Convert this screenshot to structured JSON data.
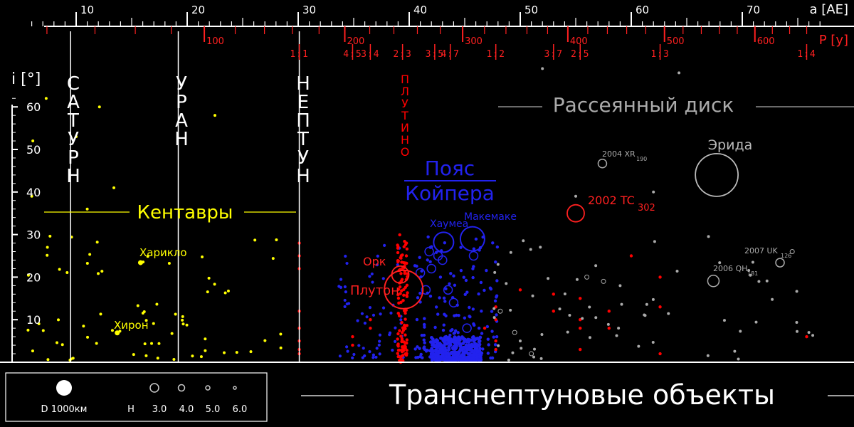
{
  "chart_data": {
    "type": "scatter",
    "title": "Транснептуновые объекты",
    "xlabel": "a [АЕ]",
    "ylabel": "i [°]",
    "xlim": [
      5,
      77
    ],
    "ylim": [
      0,
      65
    ],
    "x_ticks": [
      10,
      20,
      30,
      40,
      50,
      60,
      70
    ],
    "y_ticks": [
      10,
      20,
      30,
      40,
      50,
      60
    ],
    "period_axis": {
      "label": "P [y]",
      "ticks": [
        100,
        200,
        300,
        400,
        500,
        600
      ]
    },
    "resonances": [
      {
        "a": 30.1,
        "label": "1:1"
      },
      {
        "a": 34.9,
        "label": "4:5"
      },
      {
        "a": 36.5,
        "label": "3:4"
      },
      {
        "a": 39.4,
        "label": "2:3"
      },
      {
        "a": 42.3,
        "label": "3:5"
      },
      {
        "a": 43.7,
        "label": "4:7"
      },
      {
        "a": 47.8,
        "label": "1:2"
      },
      {
        "a": 53.0,
        "label": "3:7"
      },
      {
        "a": 55.4,
        "label": "2:5"
      },
      {
        "a": 62.6,
        "label": "1:3"
      },
      {
        "a": 75.8,
        "label": "1:4"
      }
    ],
    "planets": [
      {
        "name": "САТУРН",
        "a": 9.5
      },
      {
        "name": "УРАН",
        "a": 19.2
      },
      {
        "name": "НЕПТУН",
        "a": 30.1
      }
    ],
    "regions": [
      {
        "name": "Кентавры",
        "color": "#ffff00"
      },
      {
        "name": "Пояс Койпера",
        "color": "#2222ee"
      },
      {
        "name": "Рассеянный диск",
        "color": "#aaaaaa"
      },
      {
        "name": "ПЛУТИНО",
        "color": "#ff0000"
      }
    ],
    "named_objects": [
      {
        "name": "Эрида",
        "a": 67.7,
        "i": 44.0,
        "color": "#bbbbbb"
      },
      {
        "name": "2002 TC",
        "sub": "302",
        "a": 55.0,
        "i": 35.0,
        "color": "#ff2020"
      },
      {
        "name": "2004 XR",
        "sub": "190",
        "a": 57.4,
        "i": 46.7,
        "color": "#aaaaaa"
      },
      {
        "name": "2007 UK",
        "sub": "126",
        "a": 73.4,
        "i": 23.4,
        "color": "#aaaaaa"
      },
      {
        "name": "2006 QH",
        "sub": "181",
        "a": 67.4,
        "i": 19.1,
        "color": "#aaaaaa"
      },
      {
        "name": "Плутон",
        "a": 39.5,
        "i": 17.1,
        "color": "#ff2020"
      },
      {
        "name": "Орк",
        "a": 39.2,
        "i": 20.6,
        "color": "#ff2020"
      },
      {
        "name": "Хаумеа",
        "a": 43.1,
        "i": 28.2,
        "color": "#2222ee"
      },
      {
        "name": "Макемаке",
        "a": 45.7,
        "i": 29.0,
        "color": "#2222ee"
      },
      {
        "name": "Харикло",
        "a": 15.8,
        "i": 23.4,
        "color": "#ffff00"
      },
      {
        "name": "Хирон",
        "a": 13.7,
        "i": 6.9,
        "color": "#ffff00"
      }
    ],
    "legend": {
      "d_label": "D 1000км",
      "h_label": "H",
      "h_values": [
        "3.0",
        "4.0",
        "5.0",
        "6.0"
      ]
    },
    "colors": {
      "axis_top": "#ffffff",
      "axis_period": "#ff2020",
      "centaurs": "#ffff00",
      "kuiper": "#2222ee",
      "resonant": "#ff0000",
      "scattered": "#aaaaaa"
    }
  }
}
